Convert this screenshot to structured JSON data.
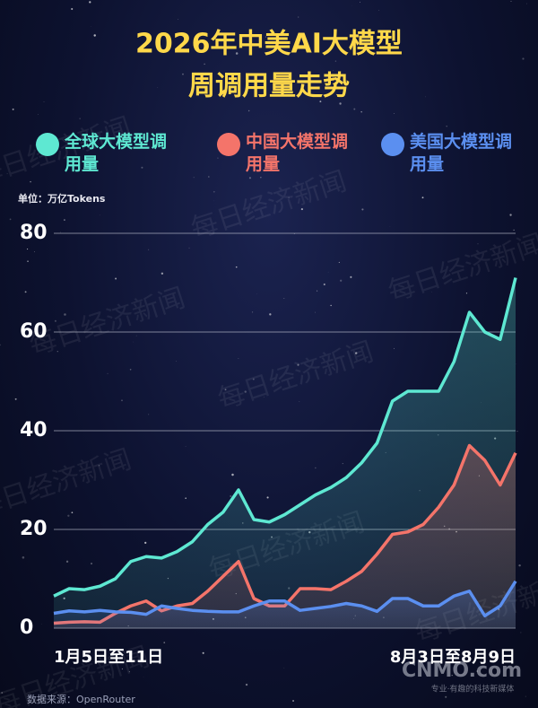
{
  "chart_data": {
    "type": "line",
    "title": [
      "2026年中美AI大模型",
      "周调用量走势"
    ],
    "unit_label": "单位：万亿Tokens",
    "source": "数据来源：OpenRouter",
    "watermark": "每日经济新闻",
    "logo": "CNMO.com",
    "logo_tagline": "专业·有趣的科技新媒体",
    "categories": [
      "1月5日至11日",
      null,
      null,
      null,
      null,
      null,
      null,
      null,
      null,
      null,
      null,
      null,
      null,
      null,
      null,
      null,
      null,
      null,
      null,
      null,
      null,
      null,
      null,
      null,
      null,
      null,
      null,
      null,
      null,
      null,
      "8月3日至8月9日"
    ],
    "series": [
      {
        "name": "全球大模型调用量",
        "color": "#5ee8d2",
        "values": [
          6.5,
          8,
          7.8,
          8.5,
          10,
          13.5,
          14.5,
          14.2,
          15.5,
          17.5,
          21,
          23.5,
          28,
          22,
          21.5,
          23,
          25,
          27,
          28.5,
          30.5,
          33.5,
          37.5,
          46,
          48,
          48,
          48,
          54,
          64,
          60,
          58.5,
          71
        ]
      },
      {
        "name": "中国大模型调用量",
        "color": "#f4746a",
        "values": [
          1,
          1.2,
          1.3,
          1.2,
          3,
          4.5,
          5.5,
          3.5,
          4.5,
          5,
          7.5,
          10.5,
          13.5,
          6,
          4.5,
          4.5,
          8,
          8,
          7.8,
          9.5,
          11.5,
          15,
          19,
          19.5,
          21,
          24.5,
          29,
          37,
          34,
          29,
          35.5
        ]
      },
      {
        "name": "美国大模型调用量",
        "color": "#5b8ff0",
        "values": [
          3,
          3.5,
          3.3,
          3.6,
          3.3,
          3.2,
          2.8,
          4.5,
          4,
          3.6,
          3.4,
          3.3,
          3.3,
          4.5,
          5.5,
          5.5,
          3.6,
          4,
          4.4,
          5,
          4.5,
          3.4,
          6,
          6,
          4.5,
          4.5,
          6.5,
          7.5,
          2.5,
          4.5,
          9.5
        ]
      }
    ],
    "ylim": [
      0,
      80
    ],
    "yticks": [
      0,
      20,
      40,
      60,
      80
    ],
    "grid": true
  }
}
